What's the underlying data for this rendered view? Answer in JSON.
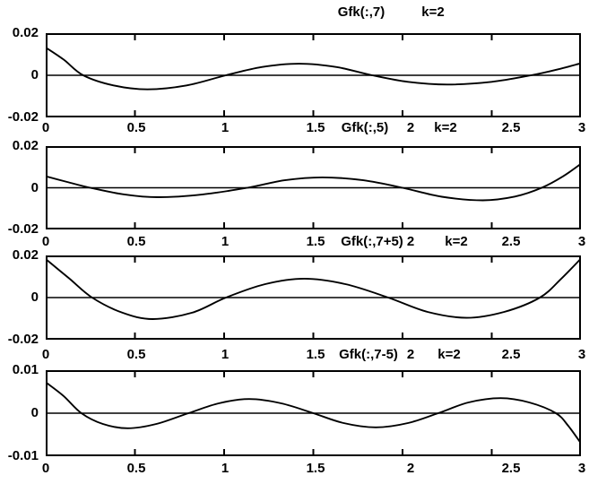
{
  "figure": {
    "background": "#ffffff",
    "line_color": "#000000"
  },
  "chart_data": [
    {
      "type": "line",
      "title": "Gfk(:,7)      k=2",
      "title_parts": {
        "function": "Gfk(:,7)",
        "param": "k=2"
      },
      "xlim": [
        0,
        3
      ],
      "ylim": [
        -0.02,
        0.02
      ],
      "grid": false,
      "legend": "none",
      "xtick_labels": [
        "0",
        "0.5",
        "1",
        "1.5",
        "2",
        "2.5",
        "3"
      ],
      "ytick_labels": [
        "0.02",
        "0",
        "-0.02"
      ],
      "series": [
        {
          "name": "Gfk(:,7)",
          "points": [
            [
              0,
              0.0132
            ],
            [
              0.1,
              0.0075
            ],
            [
              0.21,
              0
            ],
            [
              0.38,
              -0.0048
            ],
            [
              0.57,
              -0.0067
            ],
            [
              0.79,
              -0.0048
            ],
            [
              1.01,
              0
            ],
            [
              1.21,
              0.0039
            ],
            [
              1.42,
              0.0055
            ],
            [
              1.63,
              0.0039
            ],
            [
              1.83,
              0
            ],
            [
              2.03,
              -0.0031
            ],
            [
              2.25,
              -0.0044
            ],
            [
              2.5,
              -0.0031
            ],
            [
              2.72,
              0
            ],
            [
              2.87,
              0.0028
            ],
            [
              3,
              0.0057
            ]
          ]
        }
      ]
    },
    {
      "type": "line",
      "title": "Gfk(:,5)   k=2",
      "title_parts": {
        "function": "Gfk(:,5)",
        "param": "k=2"
      },
      "xlim": [
        0,
        3
      ],
      "ylim": [
        -0.02,
        0.02
      ],
      "grid": false,
      "legend": "none",
      "xtick_labels": [
        "0",
        "0.5",
        "1",
        "1.5",
        "2",
        "2.5",
        "3"
      ],
      "ytick_labels": [
        "0.02",
        "0",
        "-0.02"
      ],
      "series": [
        {
          "name": "Gfk(:,5)",
          "points": [
            [
              0,
              0.0055
            ],
            [
              0.12,
              0.0028
            ],
            [
              0.25,
              0
            ],
            [
              0.44,
              -0.0032
            ],
            [
              0.63,
              -0.0045
            ],
            [
              0.88,
              -0.0032
            ],
            [
              1.13,
              0
            ],
            [
              1.34,
              0.0036
            ],
            [
              1.55,
              0.005
            ],
            [
              1.78,
              0.0036
            ],
            [
              2.0,
              0
            ],
            [
              2.22,
              -0.0043
            ],
            [
              2.45,
              -0.006
            ],
            [
              2.63,
              -0.0042
            ],
            [
              2.78,
              0
            ],
            [
              2.9,
              0.0055
            ],
            [
              3,
              0.0115
            ]
          ]
        }
      ]
    },
    {
      "type": "line",
      "title": "Gfk(:,7+5)   k=2",
      "title_parts": {
        "function": "Gfk(:,7+5)",
        "param": "k=2"
      },
      "xlim": [
        0,
        3
      ],
      "ylim": [
        -0.02,
        0.02
      ],
      "grid": false,
      "legend": "none",
      "xtick_labels": [
        "0",
        "0.5",
        "1",
        "1.5",
        "2",
        "2.5",
        "3"
      ],
      "ytick_labels": [
        "0.02",
        "0",
        "-0.02"
      ],
      "series": [
        {
          "name": "Gfk(:,7+5)",
          "points": [
            [
              0,
              0.0183
            ],
            [
              0.13,
              0.0092
            ],
            [
              0.26,
              0
            ],
            [
              0.43,
              -0.0072
            ],
            [
              0.6,
              -0.0102
            ],
            [
              0.82,
              -0.0072
            ],
            [
              1.01,
              0
            ],
            [
              1.23,
              0.0064
            ],
            [
              1.45,
              0.009
            ],
            [
              1.68,
              0.0064
            ],
            [
              1.92,
              0
            ],
            [
              2.14,
              -0.0068
            ],
            [
              2.36,
              -0.0096
            ],
            [
              2.57,
              -0.0068
            ],
            [
              2.77,
              0
            ],
            [
              2.89,
              0.009
            ],
            [
              3,
              0.0185
            ]
          ]
        }
      ]
    },
    {
      "type": "line",
      "title": "Gfk(:,7-5)   k=2",
      "title_parts": {
        "function": "Gfk(:,7-5)",
        "param": "k=2"
      },
      "xlim": [
        0,
        3
      ],
      "ylim": [
        -0.01,
        0.01
      ],
      "grid": false,
      "legend": "none",
      "xtick_labels": [
        "0",
        "0.5",
        "1",
        "1.5",
        "2",
        "2.5",
        "3"
      ],
      "ytick_labels": [
        "0.01",
        "0",
        "-0.01"
      ],
      "series": [
        {
          "name": "Gfk(:,7-5)",
          "points": [
            [
              0,
              0.0072
            ],
            [
              0.1,
              0.004
            ],
            [
              0.2,
              0
            ],
            [
              0.32,
              -0.0025
            ],
            [
              0.46,
              -0.0035
            ],
            [
              0.62,
              -0.0025
            ],
            [
              0.8,
              0
            ],
            [
              0.97,
              0.0023
            ],
            [
              1.14,
              0.0033
            ],
            [
              1.32,
              0.0023
            ],
            [
              1.5,
              0
            ],
            [
              1.67,
              -0.0023
            ],
            [
              1.85,
              -0.0033
            ],
            [
              2.03,
              -0.0023
            ],
            [
              2.2,
              0
            ],
            [
              2.37,
              0.0025
            ],
            [
              2.55,
              0.0035
            ],
            [
              2.71,
              0.0025
            ],
            [
              2.86,
              0
            ],
            [
              2.93,
              -0.003
            ],
            [
              3,
              -0.007
            ]
          ]
        }
      ]
    }
  ]
}
